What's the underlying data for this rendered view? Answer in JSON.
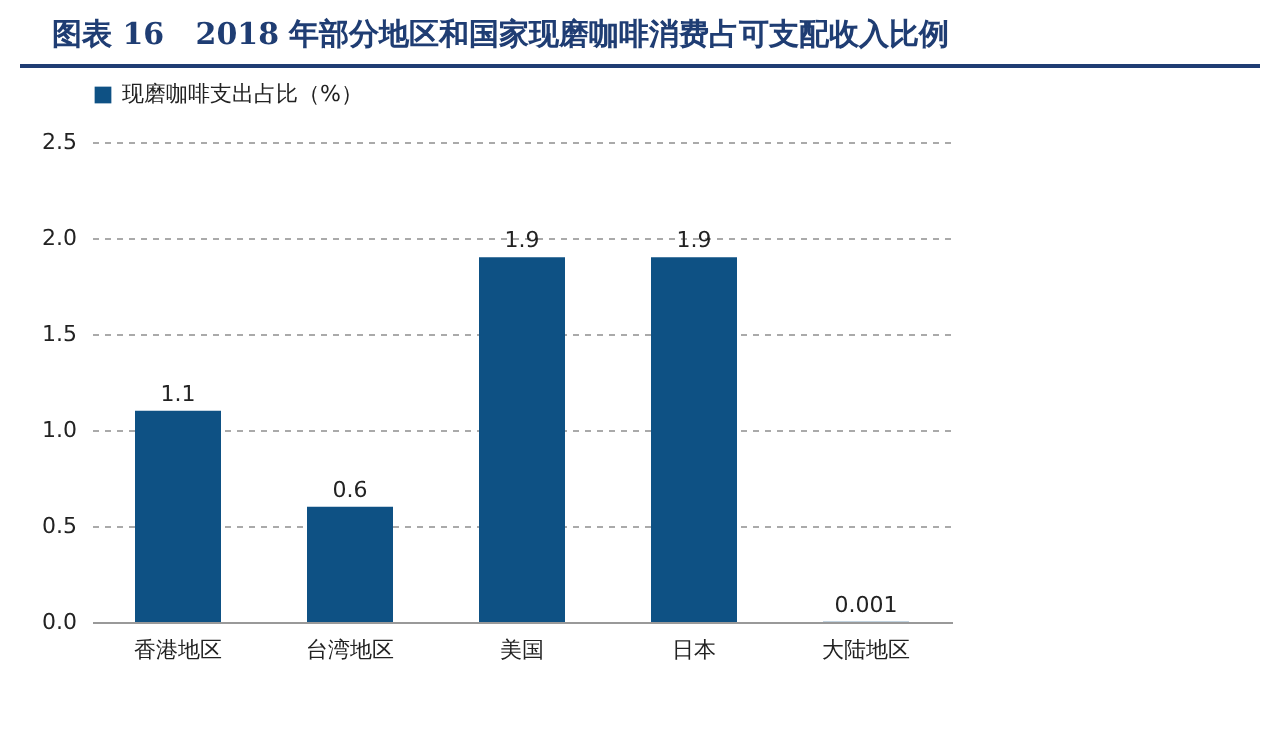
{
  "chart_data": {
    "type": "bar",
    "title": "图表 16   2018 年部分地区和国家现磨咖啡消费占可支配收入比例",
    "categories": [
      "香港地区",
      "台湾地区",
      "美国",
      "日本",
      "大陆地区"
    ],
    "series": [
      {
        "name": "现磨咖啡支出占比（%）",
        "color": "#0e5184",
        "values": [
          1.1,
          0.6,
          1.9,
          1.9,
          0.001
        ]
      }
    ],
    "ylim": [
      0,
      2.5
    ],
    "yticks": [
      {
        "value": 0,
        "label": "0.0"
      },
      {
        "value": 0.5,
        "label": "0.5"
      },
      {
        "value": 1,
        "label": "1.0"
      },
      {
        "value": 1.5,
        "label": "1.5"
      },
      {
        "value": 2,
        "label": "2.0"
      },
      {
        "value": 2.5,
        "label": "2.5"
      }
    ],
    "grid": "y",
    "legend": "top",
    "data_labels": true
  }
}
